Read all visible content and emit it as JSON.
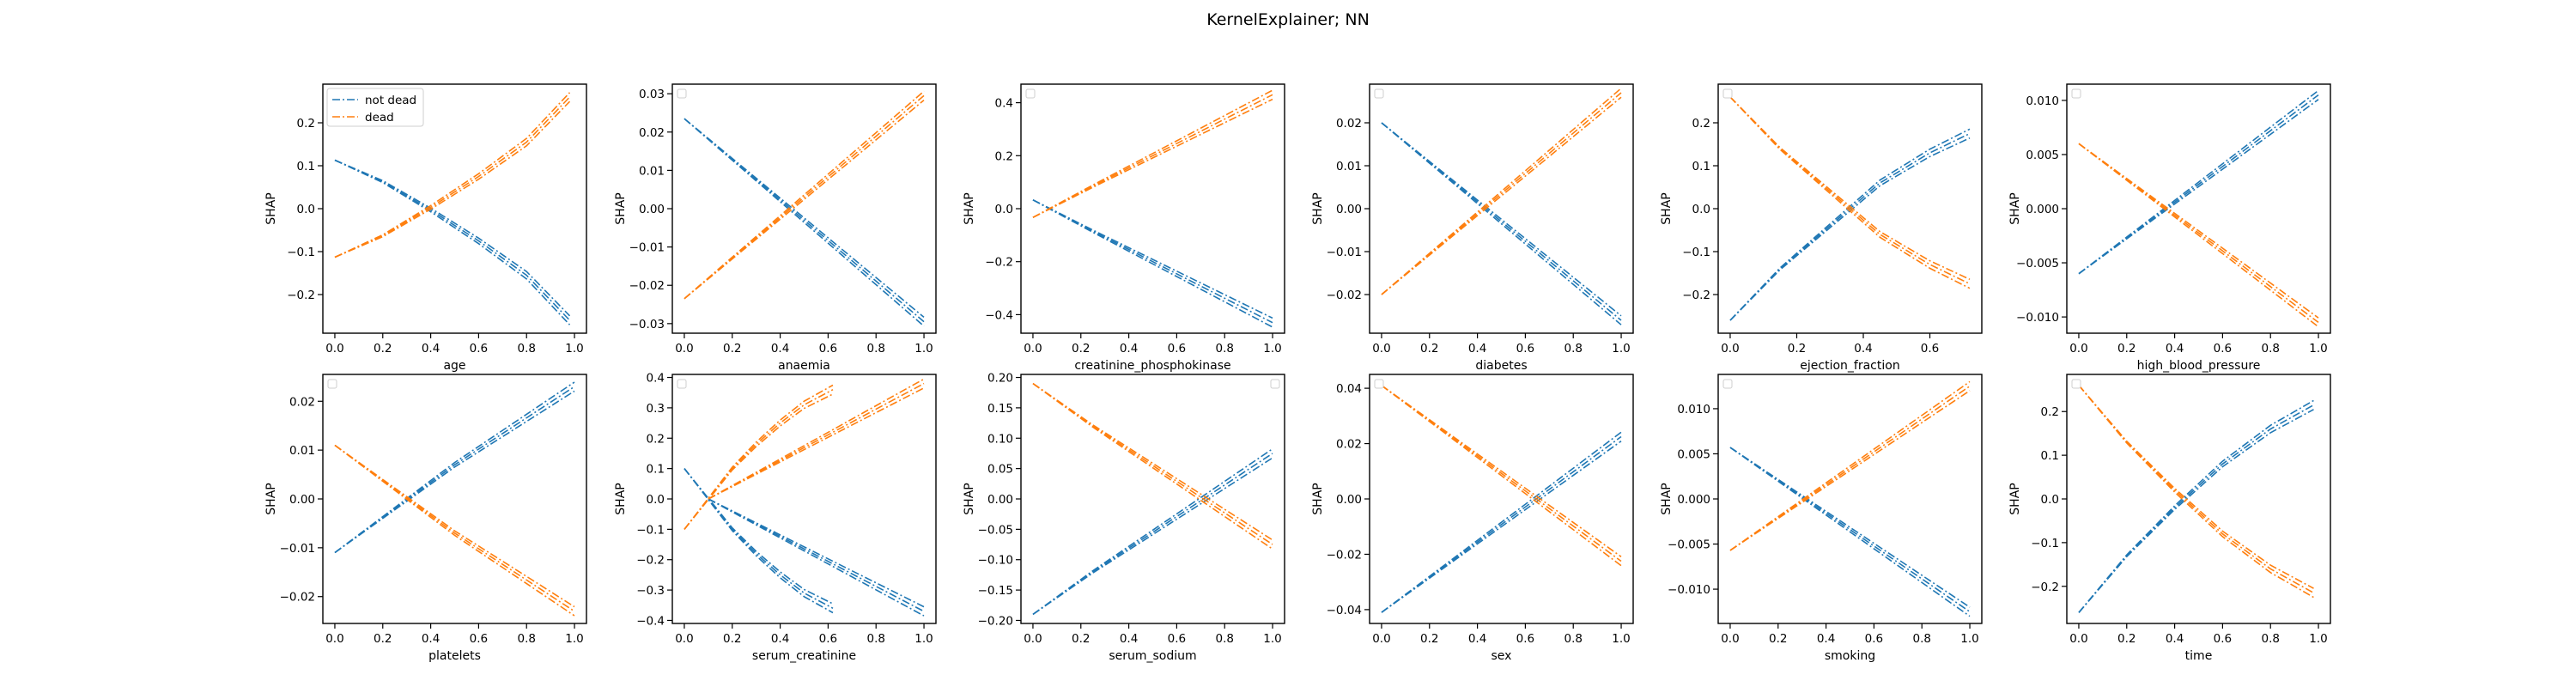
{
  "figure": {
    "title": "KernelExplainer; NN",
    "colors": {
      "not dead": "#1f77b4",
      "dead": "#ff7f0e"
    }
  },
  "chart_data": [
    {
      "type": "line",
      "title": "",
      "xlabel": "age",
      "ylabel": "SHAP",
      "xlim": [
        -0.05,
        1.05
      ],
      "ylim": [
        -0.29,
        0.29
      ],
      "xticks": [
        "0.0",
        "0.2",
        "0.4",
        "0.6",
        "0.8",
        "1.0"
      ],
      "yticks": [
        "−0.2",
        "−0.1",
        "0.0",
        "0.1",
        "0.2"
      ],
      "legend": {
        "position": "upper left",
        "entries": [
          "not dead",
          "dead"
        ]
      },
      "series": [
        {
          "name": "not dead",
          "x": [
            0,
            0.2,
            0.4,
            0.6,
            0.8,
            0.98
          ],
          "y": [
            0.113,
            0.063,
            -0.003,
            -0.075,
            -0.155,
            -0.26
          ]
        },
        {
          "name": "dead",
          "x": [
            0,
            0.2,
            0.4,
            0.6,
            0.8,
            0.98
          ],
          "y": [
            -0.113,
            -0.063,
            0.003,
            0.075,
            0.155,
            0.26
          ]
        }
      ]
    },
    {
      "type": "line",
      "title": "",
      "xlabel": "anaemia",
      "ylabel": "SHAP",
      "xlim": [
        -0.05,
        1.05
      ],
      "ylim": [
        -0.0325,
        0.0325
      ],
      "xticks": [
        "0.0",
        "0.2",
        "0.4",
        "0.6",
        "0.8",
        "1.0"
      ],
      "yticks": [
        "−0.03",
        "−0.02",
        "−0.01",
        "0.00",
        "0.01",
        "0.02",
        "0.03"
      ],
      "series": [
        {
          "name": "not dead",
          "x": [
            0,
            1
          ],
          "y": [
            0.0235,
            -0.0295
          ]
        },
        {
          "name": "dead",
          "x": [
            0,
            1
          ],
          "y": [
            -0.0235,
            0.0295
          ]
        }
      ]
    },
    {
      "type": "line",
      "title": "",
      "xlabel": "creatinine_phosphokinase",
      "ylabel": "SHAP",
      "xlim": [
        -0.05,
        1.05
      ],
      "ylim": [
        -0.47,
        0.47
      ],
      "xticks": [
        "0.0",
        "0.2",
        "0.4",
        "0.6",
        "0.8",
        "1.0"
      ],
      "yticks": [
        "−0.4",
        "−0.2",
        "0.0",
        "0.2",
        "0.4"
      ],
      "series": [
        {
          "name": "not dead",
          "x": [
            0,
            0.25,
            0.5,
            0.75,
            1
          ],
          "y": [
            0.033,
            -0.085,
            -0.2,
            -0.315,
            -0.43
          ]
        },
        {
          "name": "dead",
          "x": [
            0,
            0.25,
            0.5,
            0.75,
            1
          ],
          "y": [
            -0.033,
            0.085,
            0.2,
            0.315,
            0.43
          ]
        }
      ]
    },
    {
      "type": "line",
      "title": "",
      "xlabel": "diabetes",
      "ylabel": "SHAP",
      "xlim": [
        -0.05,
        1.05
      ],
      "ylim": [
        -0.029,
        0.029
      ],
      "xticks": [
        "0.0",
        "0.2",
        "0.4",
        "0.6",
        "0.8",
        "1.0"
      ],
      "yticks": [
        "−0.02",
        "−0.01",
        "0.00",
        "0.01",
        "0.02"
      ],
      "series": [
        {
          "name": "not dead",
          "x": [
            0,
            1
          ],
          "y": [
            0.02,
            -0.026
          ]
        },
        {
          "name": "dead",
          "x": [
            0,
            1
          ],
          "y": [
            -0.02,
            0.027
          ]
        }
      ]
    },
    {
      "type": "line",
      "title": "",
      "xlabel": "ejection_fraction",
      "ylabel": "SHAP",
      "xlim": [
        -0.036,
        0.756
      ],
      "ylim": [
        -0.29,
        0.29
      ],
      "xticks": [
        "0.0",
        "0.2",
        "0.4",
        "0.6"
      ],
      "yticks": [
        "−0.2",
        "−0.1",
        "0.0",
        "0.1",
        "0.2"
      ],
      "series": [
        {
          "name": "not dead",
          "x": [
            0,
            0.15,
            0.3,
            0.45,
            0.6,
            0.72
          ],
          "y": [
            -0.26,
            -0.14,
            -0.04,
            0.06,
            0.13,
            0.175
          ]
        },
        {
          "name": "dead",
          "x": [
            0,
            0.15,
            0.3,
            0.45,
            0.6,
            0.72
          ],
          "y": [
            0.26,
            0.14,
            0.04,
            -0.06,
            -0.13,
            -0.175
          ]
        }
      ]
    },
    {
      "type": "line",
      "title": "",
      "xlabel": "high_blood_pressure",
      "ylabel": "SHAP",
      "xlim": [
        -0.05,
        1.05
      ],
      "ylim": [
        -0.0115,
        0.0115
      ],
      "xticks": [
        "0.0",
        "0.2",
        "0.4",
        "0.6",
        "0.8",
        "1.0"
      ],
      "yticks": [
        "−0.010",
        "−0.005",
        "0.000",
        "0.005",
        "0.010"
      ],
      "series": [
        {
          "name": "not dead",
          "x": [
            0,
            1
          ],
          "y": [
            -0.006,
            0.0105
          ]
        },
        {
          "name": "dead",
          "x": [
            0,
            1
          ],
          "y": [
            0.006,
            -0.0105
          ]
        }
      ]
    },
    {
      "type": "line",
      "title": "",
      "xlabel": "platelets",
      "ylabel": "SHAP",
      "xlim": [
        -0.05,
        1.05
      ],
      "ylim": [
        -0.0255,
        0.0255
      ],
      "xticks": [
        "0.0",
        "0.2",
        "0.4",
        "0.6",
        "0.8",
        "1.0"
      ],
      "yticks": [
        "−0.02",
        "−0.01",
        "0.00",
        "0.01",
        "0.02"
      ],
      "series": [
        {
          "name": "not dead",
          "x": [
            0,
            0.25,
            0.5,
            0.75,
            1
          ],
          "y": [
            -0.011,
            -0.002,
            0.007,
            0.015,
            0.023
          ]
        },
        {
          "name": "dead",
          "x": [
            0,
            0.25,
            0.5,
            0.75,
            1
          ],
          "y": [
            0.011,
            0.002,
            -0.007,
            -0.015,
            -0.023
          ]
        }
      ]
    },
    {
      "type": "line",
      "title": "",
      "xlabel": "serum_creatinine",
      "ylabel": "SHAP",
      "xlim": [
        -0.05,
        1.05
      ],
      "ylim": [
        -0.41,
        0.41
      ],
      "xticks": [
        "0.0",
        "0.2",
        "0.4",
        "0.6",
        "0.8",
        "1.0"
      ],
      "yticks": [
        "−0.4",
        "−0.3",
        "−0.2",
        "−0.1",
        "0.0",
        "0.1",
        "0.2",
        "0.3",
        "0.4"
      ],
      "series": [
        {
          "name": "not dead",
          "x": [
            0,
            0.1,
            0.2,
            0.3,
            0.4,
            0.5,
            0.62
          ],
          "y": [
            0.1,
            0.0,
            -0.1,
            -0.18,
            -0.25,
            -0.31,
            -0.36
          ]
        },
        {
          "name": "not dead",
          "x": [
            0.1,
            1
          ],
          "y": [
            0.0,
            -0.37
          ]
        },
        {
          "name": "dead",
          "x": [
            0,
            0.1,
            0.2,
            0.3,
            0.4,
            0.5,
            0.62
          ],
          "y": [
            -0.1,
            0.0,
            0.1,
            0.18,
            0.25,
            0.31,
            0.36
          ]
        },
        {
          "name": "dead",
          "x": [
            0.1,
            1
          ],
          "y": [
            0.0,
            0.38
          ]
        }
      ]
    },
    {
      "type": "line",
      "title": "",
      "xlabel": "serum_sodium",
      "ylabel": "SHAP",
      "xlim": [
        -0.05,
        1.05
      ],
      "ylim": [
        -0.205,
        0.205
      ],
      "xticks": [
        "0.0",
        "0.2",
        "0.4",
        "0.6",
        "0.8",
        "1.0"
      ],
      "yticks": [
        "−0.20",
        "−0.15",
        "−0.10",
        "−0.05",
        "0.00",
        "0.05",
        "0.10",
        "0.15",
        "0.20"
      ],
      "series": [
        {
          "name": "not dead",
          "x": [
            0,
            0.25,
            0.5,
            0.75,
            1
          ],
          "y": [
            -0.19,
            -0.12,
            -0.055,
            0.01,
            0.075
          ]
        },
        {
          "name": "dead",
          "x": [
            0,
            0.25,
            0.5,
            0.75,
            1
          ],
          "y": [
            0.19,
            0.12,
            0.055,
            -0.01,
            -0.075
          ]
        }
      ]
    },
    {
      "type": "line",
      "title": "",
      "xlabel": "sex",
      "ylabel": "SHAP",
      "xlim": [
        -0.05,
        1.05
      ],
      "ylim": [
        -0.045,
        0.045
      ],
      "xticks": [
        "0.0",
        "0.2",
        "0.4",
        "0.6",
        "0.8",
        "1.0"
      ],
      "yticks": [
        "−0.04",
        "−0.02",
        "0.00",
        "0.02",
        "0.04"
      ],
      "series": [
        {
          "name": "not dead",
          "x": [
            0,
            1
          ],
          "y": [
            -0.041,
            0.0225
          ]
        },
        {
          "name": "dead",
          "x": [
            0,
            1
          ],
          "y": [
            0.041,
            -0.0225
          ]
        }
      ]
    },
    {
      "type": "line",
      "title": "",
      "xlabel": "smoking",
      "ylabel": "SHAP",
      "xlim": [
        -0.05,
        1.05
      ],
      "ylim": [
        -0.0138,
        0.0138
      ],
      "xticks": [
        "0.0",
        "0.2",
        "0.4",
        "0.6",
        "0.8",
        "1.0"
      ],
      "yticks": [
        "−0.010",
        "−0.005",
        "0.000",
        "0.005",
        "0.010"
      ],
      "series": [
        {
          "name": "not dead",
          "x": [
            0,
            1
          ],
          "y": [
            0.0057,
            -0.0125
          ]
        },
        {
          "name": "dead",
          "x": [
            0,
            1
          ],
          "y": [
            -0.0057,
            0.0125
          ]
        }
      ]
    },
    {
      "type": "line",
      "title": "",
      "xlabel": "time",
      "ylabel": "SHAP",
      "xlim": [
        -0.05,
        1.05
      ],
      "ylim": [
        -0.285,
        0.285
      ],
      "xticks": [
        "0.0",
        "0.2",
        "0.4",
        "0.6",
        "0.8",
        "1.0"
      ],
      "yticks": [
        "−0.2",
        "−0.1",
        "0.0",
        "0.1",
        "0.2"
      ],
      "series": [
        {
          "name": "not dead",
          "x": [
            0,
            0.2,
            0.4,
            0.6,
            0.8,
            0.98
          ],
          "y": [
            -0.26,
            -0.13,
            -0.02,
            0.08,
            0.16,
            0.215
          ]
        },
        {
          "name": "dead",
          "x": [
            0,
            0.2,
            0.4,
            0.6,
            0.8,
            0.98
          ],
          "y": [
            0.26,
            0.13,
            0.02,
            -0.08,
            -0.16,
            -0.215
          ]
        }
      ]
    }
  ]
}
